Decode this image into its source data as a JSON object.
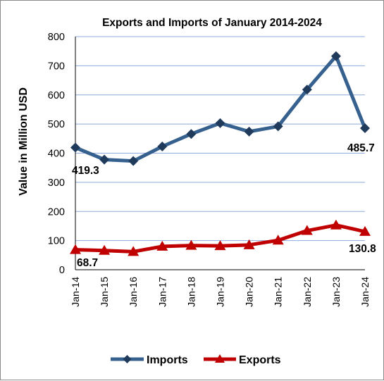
{
  "chart_data": {
    "type": "line",
    "title": "Exports and Imports of January 2014-2024",
    "xlabel": "",
    "ylabel": "Value in  Million  USD",
    "categories": [
      "Jan-14",
      "Jan-15",
      "Jan-16",
      "Jan-17",
      "Jan-18",
      "Jan-19",
      "Jan-20",
      "Jan-21",
      "Jan-22",
      "Jan-23",
      "Jan-24"
    ],
    "ylim": [
      0,
      800
    ],
    "yticks": [
      "0",
      "100",
      "200",
      "300",
      "400",
      "500",
      "600",
      "700",
      "800"
    ],
    "grid": true,
    "legend_position": "bottom",
    "series": [
      {
        "name": "Imports",
        "color": "#36618f",
        "marker": "diamond",
        "values": [
          419.3,
          378,
          373,
          423,
          466,
          503,
          474,
          492,
          618,
          733,
          485.7
        ]
      },
      {
        "name": "Exports",
        "color": "#c00000",
        "marker": "triangle",
        "values": [
          68.7,
          66,
          62,
          80,
          83,
          82,
          85,
          101,
          134,
          153,
          130.8
        ]
      }
    ],
    "data_labels": {
      "imports_first": "419.3",
      "imports_last": "485.7",
      "exports_first": "68.7",
      "exports_last": "130.8"
    }
  }
}
